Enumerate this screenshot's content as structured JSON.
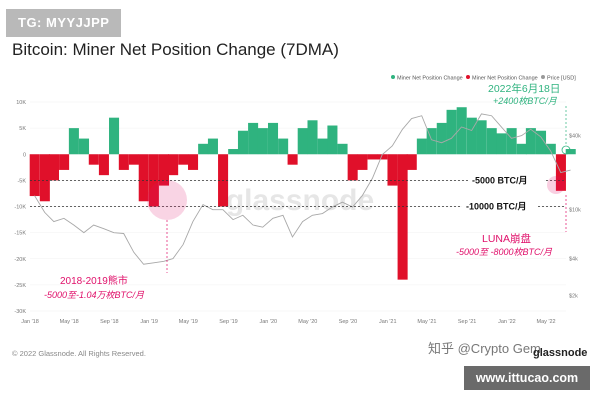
{
  "tag": "TG: MYYJJPP",
  "copyright": "© 2022 Glassnode. All Rights Reserved.",
  "watermark_zh": "知乎 @Crypto Gem",
  "brand": "glassnode",
  "site": "www.ittucao.com",
  "chart_watermark": "glassnode",
  "chart_data": {
    "type": "bar",
    "title": "Bitcoin: Miner Net Position Change (7DMA)",
    "legend": {
      "placement": "top-right",
      "entries": [
        {
          "label": "Miner Net Position Change",
          "color": "#2fb37f"
        },
        {
          "label": "Miner Net Position Change",
          "color": "#e0102a"
        },
        {
          "label": "Price [USD]",
          "color": "#999999"
        }
      ]
    },
    "colors": {
      "positive": "#2fb37f",
      "negative": "#e0102a",
      "price": "#a8a8a8",
      "annotation": "#e0106a",
      "annotation_green": "#2fb37f"
    },
    "y_left": {
      "range": [
        -30000,
        10000
      ],
      "ticks": [
        "10K",
        "5K",
        "0",
        "-5K",
        "-10K",
        "-15K",
        "-20K",
        "-25K",
        "-30K"
      ],
      "tick_values": [
        10000,
        5000,
        0,
        -5000,
        -10000,
        -15000,
        -20000,
        -25000,
        -30000
      ]
    },
    "y_right": {
      "scale": "log",
      "ticks": [
        "$40k",
        "$10k",
        "$4k",
        "$2k"
      ],
      "tick_values": [
        40000,
        10000,
        4000,
        2000
      ]
    },
    "x_axis": {
      "ticks": [
        "Jan '18",
        "May '18",
        "Sep '18",
        "Jan '19",
        "May '19",
        "Sep '19",
        "Jan '20",
        "May '20",
        "Sep '20",
        "Jan '21",
        "May '21",
        "Sep '21",
        "Jan '22",
        "May '22"
      ],
      "range": [
        "2018-01",
        "2022-07"
      ]
    },
    "reference_lines": [
      {
        "value": -5000,
        "label": "-5000 BTC/月"
      },
      {
        "value": -10000,
        "label": "-10000 BTC/月"
      }
    ],
    "series_net_position": {
      "x": [
        "2018-01",
        "2018-02",
        "2018-03",
        "2018-04",
        "2018-05",
        "2018-06",
        "2018-07",
        "2018-08",
        "2018-09",
        "2018-10",
        "2018-11",
        "2018-12",
        "2019-01",
        "2019-02",
        "2019-03",
        "2019-04",
        "2019-05",
        "2019-06",
        "2019-07",
        "2019-08",
        "2019-09",
        "2019-10",
        "2019-11",
        "2019-12",
        "2020-01",
        "2020-02",
        "2020-03",
        "2020-04",
        "2020-05",
        "2020-06",
        "2020-07",
        "2020-08",
        "2020-09",
        "2020-10",
        "2020-11",
        "2020-12",
        "2021-01",
        "2021-02",
        "2021-03",
        "2021-04",
        "2021-05",
        "2021-06",
        "2021-07",
        "2021-08",
        "2021-09",
        "2021-10",
        "2021-11",
        "2021-12",
        "2022-01",
        "2022-02",
        "2022-03",
        "2022-04",
        "2022-05",
        "2022-06",
        "2022-07"
      ],
      "values": [
        -8000,
        -9000,
        -5000,
        -3000,
        5000,
        3000,
        -2000,
        -4000,
        7000,
        -3000,
        -2000,
        -9000,
        -10000,
        -6000,
        -4000,
        -2000,
        -3000,
        2000,
        3000,
        -10000,
        1000,
        4500,
        6000,
        5000,
        6000,
        3000,
        -2000,
        5000,
        6500,
        3000,
        5500,
        2000,
        -5000,
        -3000,
        -1000,
        -1000,
        -6000,
        -24000,
        -3000,
        3000,
        5000,
        6000,
        8500,
        9000,
        7000,
        6500,
        5000,
        4000,
        5000,
        2000,
        5000,
        4500,
        2000,
        -7000,
        1000
      ]
    },
    "series_price": {
      "x": [
        "2018-01",
        "2018-02",
        "2018-03",
        "2018-04",
        "2018-05",
        "2018-06",
        "2018-07",
        "2018-08",
        "2018-09",
        "2018-10",
        "2018-11",
        "2018-12",
        "2019-01",
        "2019-02",
        "2019-03",
        "2019-04",
        "2019-05",
        "2019-06",
        "2019-07",
        "2019-08",
        "2019-09",
        "2019-10",
        "2019-11",
        "2019-12",
        "2020-01",
        "2020-02",
        "2020-03",
        "2020-04",
        "2020-05",
        "2020-06",
        "2020-07",
        "2020-08",
        "2020-09",
        "2020-10",
        "2020-11",
        "2020-12",
        "2021-01",
        "2021-02",
        "2021-03",
        "2021-04",
        "2021-05",
        "2021-06",
        "2021-07",
        "2021-08",
        "2021-09",
        "2021-10",
        "2021-11",
        "2021-12",
        "2022-01",
        "2022-02",
        "2022-03",
        "2022-04",
        "2022-05",
        "2022-06",
        "2022-07"
      ],
      "values": [
        13000,
        9500,
        8000,
        8500,
        7500,
        6500,
        7500,
        7000,
        6500,
        6400,
        4500,
        3600,
        3700,
        3800,
        4000,
        5200,
        8000,
        11000,
        10000,
        10000,
        8300,
        9000,
        7500,
        7200,
        8500,
        9000,
        6000,
        8000,
        9000,
        9300,
        10500,
        11500,
        10500,
        13000,
        18000,
        28000,
        33000,
        45000,
        55000,
        58000,
        37000,
        35000,
        38000,
        47000,
        44000,
        60000,
        58000,
        47000,
        38000,
        40000,
        45000,
        39000,
        30000,
        20000,
        21000
      ]
    },
    "annotations": [
      {
        "label": "2022年6月18日",
        "sub": "+2400枚BTC/月"
      },
      {
        "label": "LUNA崩盘",
        "sub": "-5000至 -8000枚BTC/月"
      },
      {
        "label": "2018-2019熊市",
        "sub": "-5000至-1.04万枚BTC/月"
      }
    ]
  }
}
